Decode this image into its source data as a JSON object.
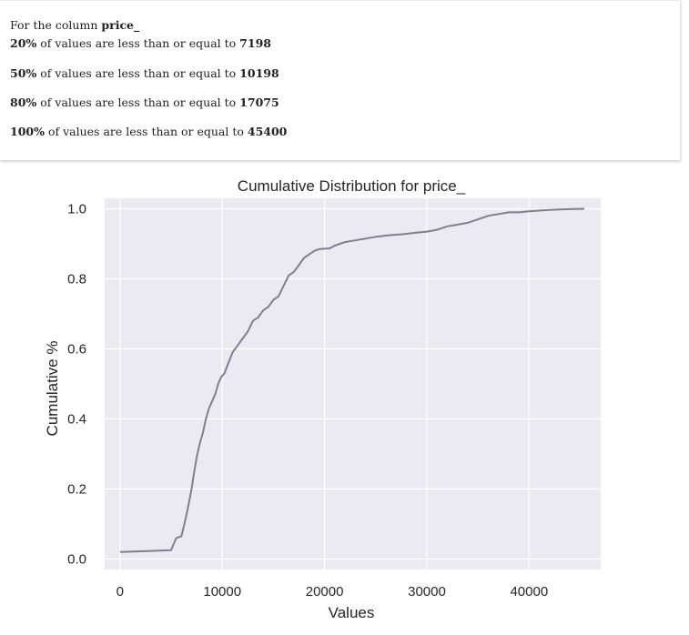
{
  "summary": {
    "intro": "For the column",
    "column": "price_",
    "rows": [
      {
        "pct": "20%",
        "text": "of values are less than or equal to",
        "value": "7198"
      },
      {
        "pct": "50%",
        "text": "of values are less than or equal to",
        "value": "10198"
      },
      {
        "pct": "80%",
        "text": "of values are less than or equal to",
        "value": "17075"
      },
      {
        "pct": "100%",
        "text": "of values are less than or equal to",
        "value": "45400"
      }
    ]
  },
  "chart_data": {
    "type": "line",
    "title": "Cumulative Distribution for price_",
    "xlabel": "Values",
    "ylabel": "Cumulative %",
    "xlim": [
      -1500,
      47000
    ],
    "ylim": [
      -0.03,
      1.03
    ],
    "xticks": [
      0,
      10000,
      20000,
      30000,
      40000
    ],
    "xtick_labels": [
      "0",
      "10000",
      "20000",
      "30000",
      "40000"
    ],
    "yticks": [
      0.0,
      0.2,
      0.4,
      0.6,
      0.8,
      1.0
    ],
    "ytick_labels": [
      "0.0",
      "0.2",
      "0.4",
      "0.6",
      "0.8",
      "1.0"
    ],
    "grid": true,
    "background_color": "#eaeaf2",
    "grid_color": "#ffffff",
    "line_color": "#7f7f8f",
    "series": [
      {
        "x": [
          0,
          1000,
          3000,
          5000,
          5200,
          5500,
          6000,
          6300,
          6600,
          7000,
          7200,
          7500,
          7800,
          8100,
          8400,
          8700,
          9000,
          9300,
          9600,
          9900,
          10200,
          10600,
          11000,
          11500,
          12000,
          12500,
          13000,
          13500,
          14000,
          14500,
          15000,
          15500,
          16000,
          16500,
          17000,
          17500,
          18000,
          18500,
          19000,
          19500,
          20500,
          21000,
          22000,
          23000,
          24000,
          25000,
          26500,
          27500,
          29000,
          30000,
          31000,
          32000,
          33000,
          34000,
          35000,
          36000,
          37000,
          38000,
          39000,
          40000,
          41000,
          42000,
          43000,
          44000,
          45400
        ],
        "y": [
          0.02,
          0.021,
          0.023,
          0.025,
          0.04,
          0.06,
          0.065,
          0.1,
          0.14,
          0.2,
          0.24,
          0.29,
          0.33,
          0.36,
          0.4,
          0.43,
          0.45,
          0.47,
          0.5,
          0.52,
          0.53,
          0.56,
          0.59,
          0.61,
          0.63,
          0.65,
          0.68,
          0.69,
          0.71,
          0.72,
          0.74,
          0.75,
          0.78,
          0.81,
          0.82,
          0.84,
          0.86,
          0.87,
          0.88,
          0.885,
          0.887,
          0.895,
          0.905,
          0.91,
          0.915,
          0.92,
          0.925,
          0.927,
          0.932,
          0.935,
          0.94,
          0.95,
          0.955,
          0.96,
          0.97,
          0.98,
          0.985,
          0.99,
          0.99,
          0.993,
          0.995,
          0.997,
          0.998,
          0.999,
          1.0
        ]
      }
    ]
  }
}
